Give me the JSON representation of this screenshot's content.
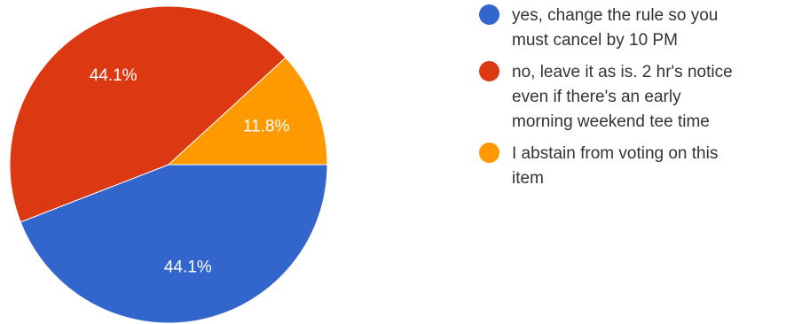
{
  "chart_data": {
    "type": "pie",
    "slices": [
      {
        "label": "yes, change the rule so you\nmust cancel by 10 PM",
        "value": 44.1,
        "display": "44.1%",
        "color": "#3366cc"
      },
      {
        "label": "no, leave it as is. 2 hr's notice\neven if there's an early\nmorning weekend tee time",
        "value": 44.1,
        "display": "44.1%",
        "color": "#dc3912"
      },
      {
        "label": "I abstain from voting on this\nitem",
        "value": 11.8,
        "display": "11.8%",
        "color": "#ff9900"
      }
    ],
    "start_angle": "3 o'clock",
    "direction": "clockwise",
    "legend_placement": "right"
  }
}
